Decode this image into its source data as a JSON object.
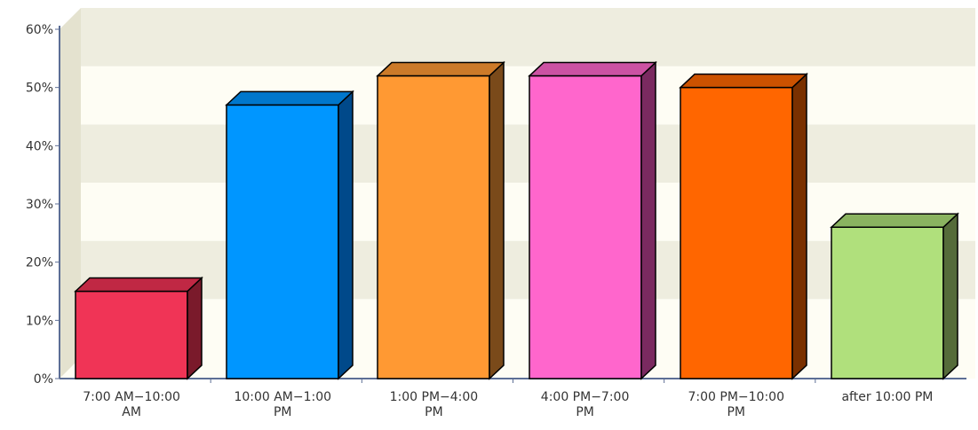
{
  "chart_data": {
    "type": "bar",
    "title": "",
    "xlabel": "",
    "ylabel": "",
    "categories": [
      [
        "7:00 AM−10:00",
        "AM"
      ],
      [
        "10:00 AM−1:00",
        "PM"
      ],
      [
        "1:00 PM−4:00",
        "PM"
      ],
      [
        "4:00 PM−7:00",
        "PM"
      ],
      [
        "7:00 PM−10:00",
        "PM"
      ],
      [
        "after 10:00 PM"
      ]
    ],
    "values": [
      15,
      47,
      52,
      52,
      50,
      26
    ],
    "ylim": [
      0,
      60
    ],
    "yticks": [
      {
        "value": 0,
        "label": "0%"
      },
      {
        "value": 10,
        "label": "10%"
      },
      {
        "value": 20,
        "label": "20%"
      },
      {
        "value": 30,
        "label": "30%"
      },
      {
        "value": 40,
        "label": "40%"
      },
      {
        "value": 50,
        "label": "50%"
      },
      {
        "value": 60,
        "label": "60%"
      }
    ],
    "colors": [
      "#f03456",
      "#0096ff",
      "#ff9933",
      "#ff66cc",
      "#ff6600",
      "#b0e07c"
    ],
    "side_colors": [
      "#7a1a2b",
      "#00498a",
      "#7a4a1a",
      "#7a2a60",
      "#7a3000",
      "#556b3a"
    ],
    "top_colors": [
      "#c02844",
      "#0077cc",
      "#cc7a29",
      "#cc52a3",
      "#cc5200",
      "#8ab360"
    ],
    "band_colors": [
      "#eeeddf",
      "#fefdf4"
    ],
    "axis_color": "#5c6e95",
    "grid": true,
    "legend": "none",
    "style": "3d"
  }
}
